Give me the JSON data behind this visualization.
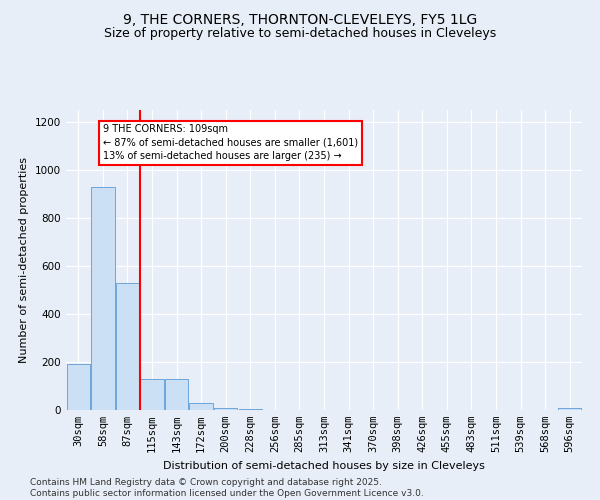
{
  "title_line1": "9, THE CORNERS, THORNTON-CLEVELEYS, FY5 1LG",
  "title_line2": "Size of property relative to semi-detached houses in Cleveleys",
  "xlabel": "Distribution of semi-detached houses by size in Cleveleys",
  "ylabel": "Number of semi-detached properties",
  "bins": [
    "30sqm",
    "58sqm",
    "87sqm",
    "115sqm",
    "143sqm",
    "172sqm",
    "200sqm",
    "228sqm",
    "256sqm",
    "285sqm",
    "313sqm",
    "341sqm",
    "370sqm",
    "398sqm",
    "426sqm",
    "455sqm",
    "483sqm",
    "511sqm",
    "539sqm",
    "568sqm",
    "596sqm"
  ],
  "values": [
    190,
    930,
    530,
    130,
    130,
    30,
    10,
    5,
    0,
    0,
    0,
    0,
    0,
    0,
    0,
    0,
    0,
    0,
    0,
    0,
    7
  ],
  "bar_color": "#cce0f5",
  "bar_edge_color": "#5b9bd5",
  "vline_x_index": 3,
  "vline_color": "red",
  "annotation_text": "9 THE CORNERS: 109sqm\n← 87% of semi-detached houses are smaller (1,601)\n13% of semi-detached houses are larger (235) →",
  "annotation_box_color": "red",
  "annotation_text_color": "black",
  "ylim": [
    0,
    1250
  ],
  "yticks": [
    0,
    200,
    400,
    600,
    800,
    1000,
    1200
  ],
  "footer_text": "Contains HM Land Registry data © Crown copyright and database right 2025.\nContains public sector information licensed under the Open Government Licence v3.0.",
  "background_color": "#e8eef8",
  "grid_color": "white",
  "title_fontsize": 10,
  "subtitle_fontsize": 9,
  "axis_label_fontsize": 8,
  "tick_fontsize": 7.5,
  "footer_fontsize": 6.5
}
